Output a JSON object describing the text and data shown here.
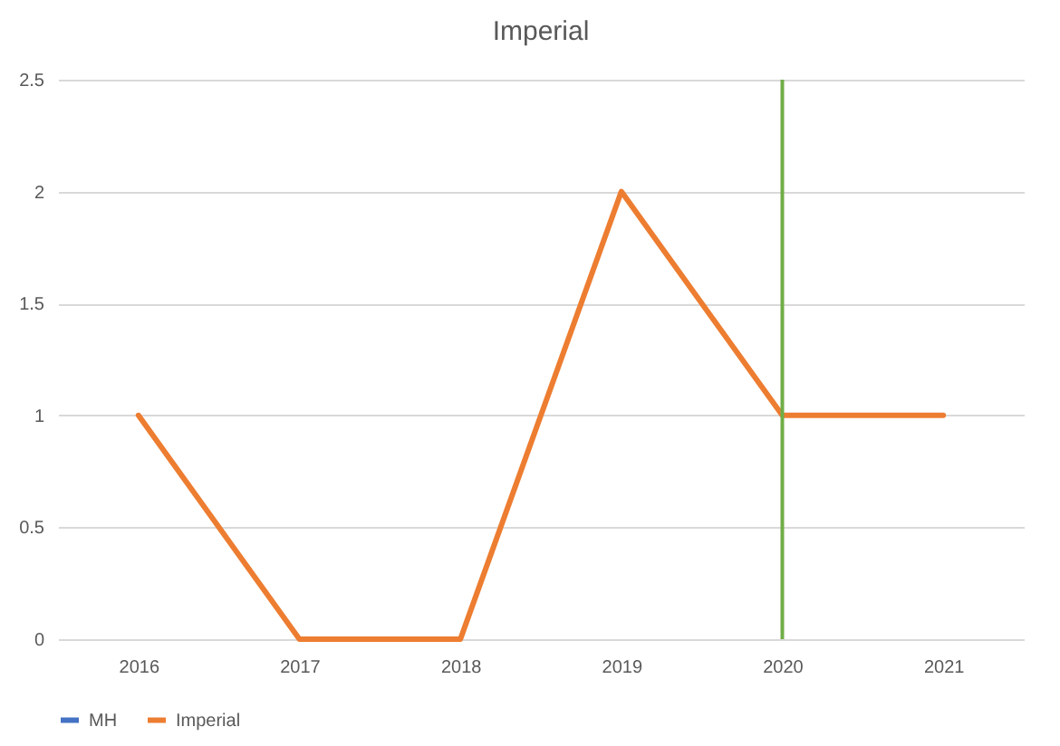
{
  "chart_data": {
    "type": "line",
    "title": "Imperial",
    "categories": [
      "2016",
      "2017",
      "2018",
      "2019",
      "2020",
      "2021"
    ],
    "series": [
      {
        "name": "MH",
        "color": "#4472c4",
        "values": [
          null,
          null,
          null,
          null,
          null,
          null
        ]
      },
      {
        "name": "Imperial",
        "color": "#ed7d31",
        "values": [
          1,
          0,
          0,
          2,
          1,
          1
        ]
      }
    ],
    "ylim": [
      0,
      2.5
    ],
    "yticks": [
      0,
      0.5,
      1,
      1.5,
      2,
      2.5
    ],
    "grid": "y",
    "legend": "bottom",
    "ref_lines": [
      {
        "axis": "x",
        "value": "2020",
        "color": "#70ad47"
      }
    ]
  }
}
